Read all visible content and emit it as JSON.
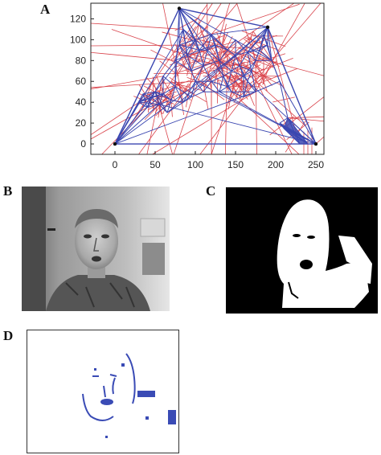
{
  "figure": {
    "panels": [
      {
        "letter": "A"
      },
      {
        "letter": "B"
      },
      {
        "letter": "C"
      },
      {
        "letter": "D"
      }
    ]
  },
  "chart_data": {
    "type": "scatter",
    "title": "",
    "xlabel": "",
    "ylabel": "",
    "xlim": [
      -30,
      260
    ],
    "ylim": [
      -10,
      135
    ],
    "xticks": [
      0,
      50,
      100,
      150,
      200,
      250
    ],
    "yticks": [
      0,
      20,
      40,
      60,
      80,
      100,
      120
    ],
    "grid": false,
    "series": [
      {
        "color": "#3a46b0",
        "style": "delaunay-mesh"
      },
      {
        "color": "#d9434b",
        "style": "voronoi-edges"
      }
    ],
    "hull_points": [
      [
        0,
        0
      ],
      [
        80,
        130
      ],
      [
        190,
        112
      ],
      [
        250,
        0
      ]
    ],
    "feature_points": [
      [
        30,
        40
      ],
      [
        40,
        35
      ],
      [
        45,
        45
      ],
      [
        55,
        38
      ],
      [
        60,
        48
      ],
      [
        70,
        42
      ],
      [
        65,
        30
      ],
      [
        50,
        50
      ],
      [
        35,
        48
      ],
      [
        75,
        55
      ],
      [
        75,
        80
      ],
      [
        80,
        95
      ],
      [
        85,
        110
      ],
      [
        90,
        85
      ],
      [
        95,
        70
      ],
      [
        100,
        60
      ],
      [
        110,
        75
      ],
      [
        115,
        90
      ],
      [
        120,
        105
      ],
      [
        125,
        95
      ],
      [
        130,
        80
      ],
      [
        135,
        65
      ],
      [
        140,
        55
      ],
      [
        145,
        70
      ],
      [
        150,
        85
      ],
      [
        155,
        75
      ],
      [
        160,
        65
      ],
      [
        165,
        60
      ],
      [
        170,
        70
      ],
      [
        175,
        80
      ],
      [
        180,
        90
      ],
      [
        185,
        105
      ],
      [
        190,
        95
      ],
      [
        195,
        80
      ],
      [
        200,
        70
      ],
      [
        205,
        60
      ],
      [
        175,
        50
      ],
      [
        160,
        45
      ],
      [
        145,
        50
      ],
      [
        130,
        50
      ],
      [
        110,
        50
      ],
      [
        95,
        45
      ],
      [
        85,
        40
      ],
      [
        120,
        60
      ],
      [
        105,
        90
      ],
      [
        140,
        90
      ],
      [
        165,
        88
      ],
      [
        150,
        100
      ],
      [
        100,
        100
      ],
      [
        60,
        65
      ]
    ],
    "wedge_points": [
      [
        205,
        20
      ],
      [
        230,
        0
      ],
      [
        240,
        0
      ],
      [
        215,
        25
      ],
      [
        210,
        15
      ]
    ]
  },
  "colors": {
    "mesh": "#3a46b0",
    "voronoi": "#d9434b",
    "edge_blue": "#3a4bb5"
  }
}
